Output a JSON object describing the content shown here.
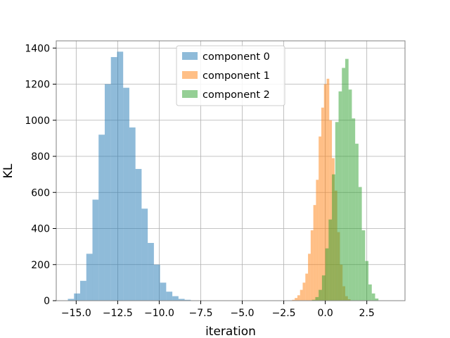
{
  "chart_data": {
    "type": "histogram",
    "xlabel": "iteration",
    "ylabel": "KL",
    "xlim": [
      -16.2,
      4.8
    ],
    "ylim": [
      0,
      1440
    ],
    "grid": true,
    "legend_position": "upper center",
    "x_ticks": [
      -15.0,
      -12.5,
      -10.0,
      -7.5,
      -5.0,
      -2.5,
      0.0,
      2.5
    ],
    "x_tick_labels": [
      "−15.0",
      "−12.5",
      "−10.0",
      "−7.5",
      "−5.0",
      "−2.5",
      "0.0",
      "2.5"
    ],
    "y_ticks": [
      0,
      200,
      400,
      600,
      800,
      1000,
      1200,
      1400
    ],
    "y_tick_labels": [
      "0",
      "200",
      "400",
      "600",
      "800",
      "1000",
      "1200",
      "1400"
    ],
    "series": [
      {
        "name": "component 0",
        "color": "#1f77b4",
        "alpha": 0.5,
        "bin_width": 0.37,
        "bin_start": -15.5,
        "counts": [
          10,
          40,
          110,
          260,
          560,
          920,
          1200,
          1350,
          1380,
          1180,
          960,
          730,
          510,
          320,
          200,
          100,
          50,
          25,
          10,
          5
        ]
      },
      {
        "name": "component 1",
        "color": "#ff7f0e",
        "alpha": 0.5,
        "bin_width": 0.16,
        "bin_start": -2.0,
        "counts": [
          5,
          15,
          30,
          60,
          100,
          150,
          260,
          390,
          530,
          670,
          910,
          1070,
          1200,
          1230,
          1000,
          790,
          610,
          380,
          200,
          80,
          25,
          8
        ]
      },
      {
        "name": "component 2",
        "color": "#2ca02c",
        "alpha": 0.5,
        "bin_width": 0.2,
        "bin_start": -0.8,
        "counts": [
          5,
          20,
          60,
          140,
          290,
          450,
          700,
          990,
          1160,
          1290,
          1340,
          1170,
          1010,
          870,
          630,
          390,
          220,
          90,
          40,
          12
        ]
      }
    ]
  }
}
